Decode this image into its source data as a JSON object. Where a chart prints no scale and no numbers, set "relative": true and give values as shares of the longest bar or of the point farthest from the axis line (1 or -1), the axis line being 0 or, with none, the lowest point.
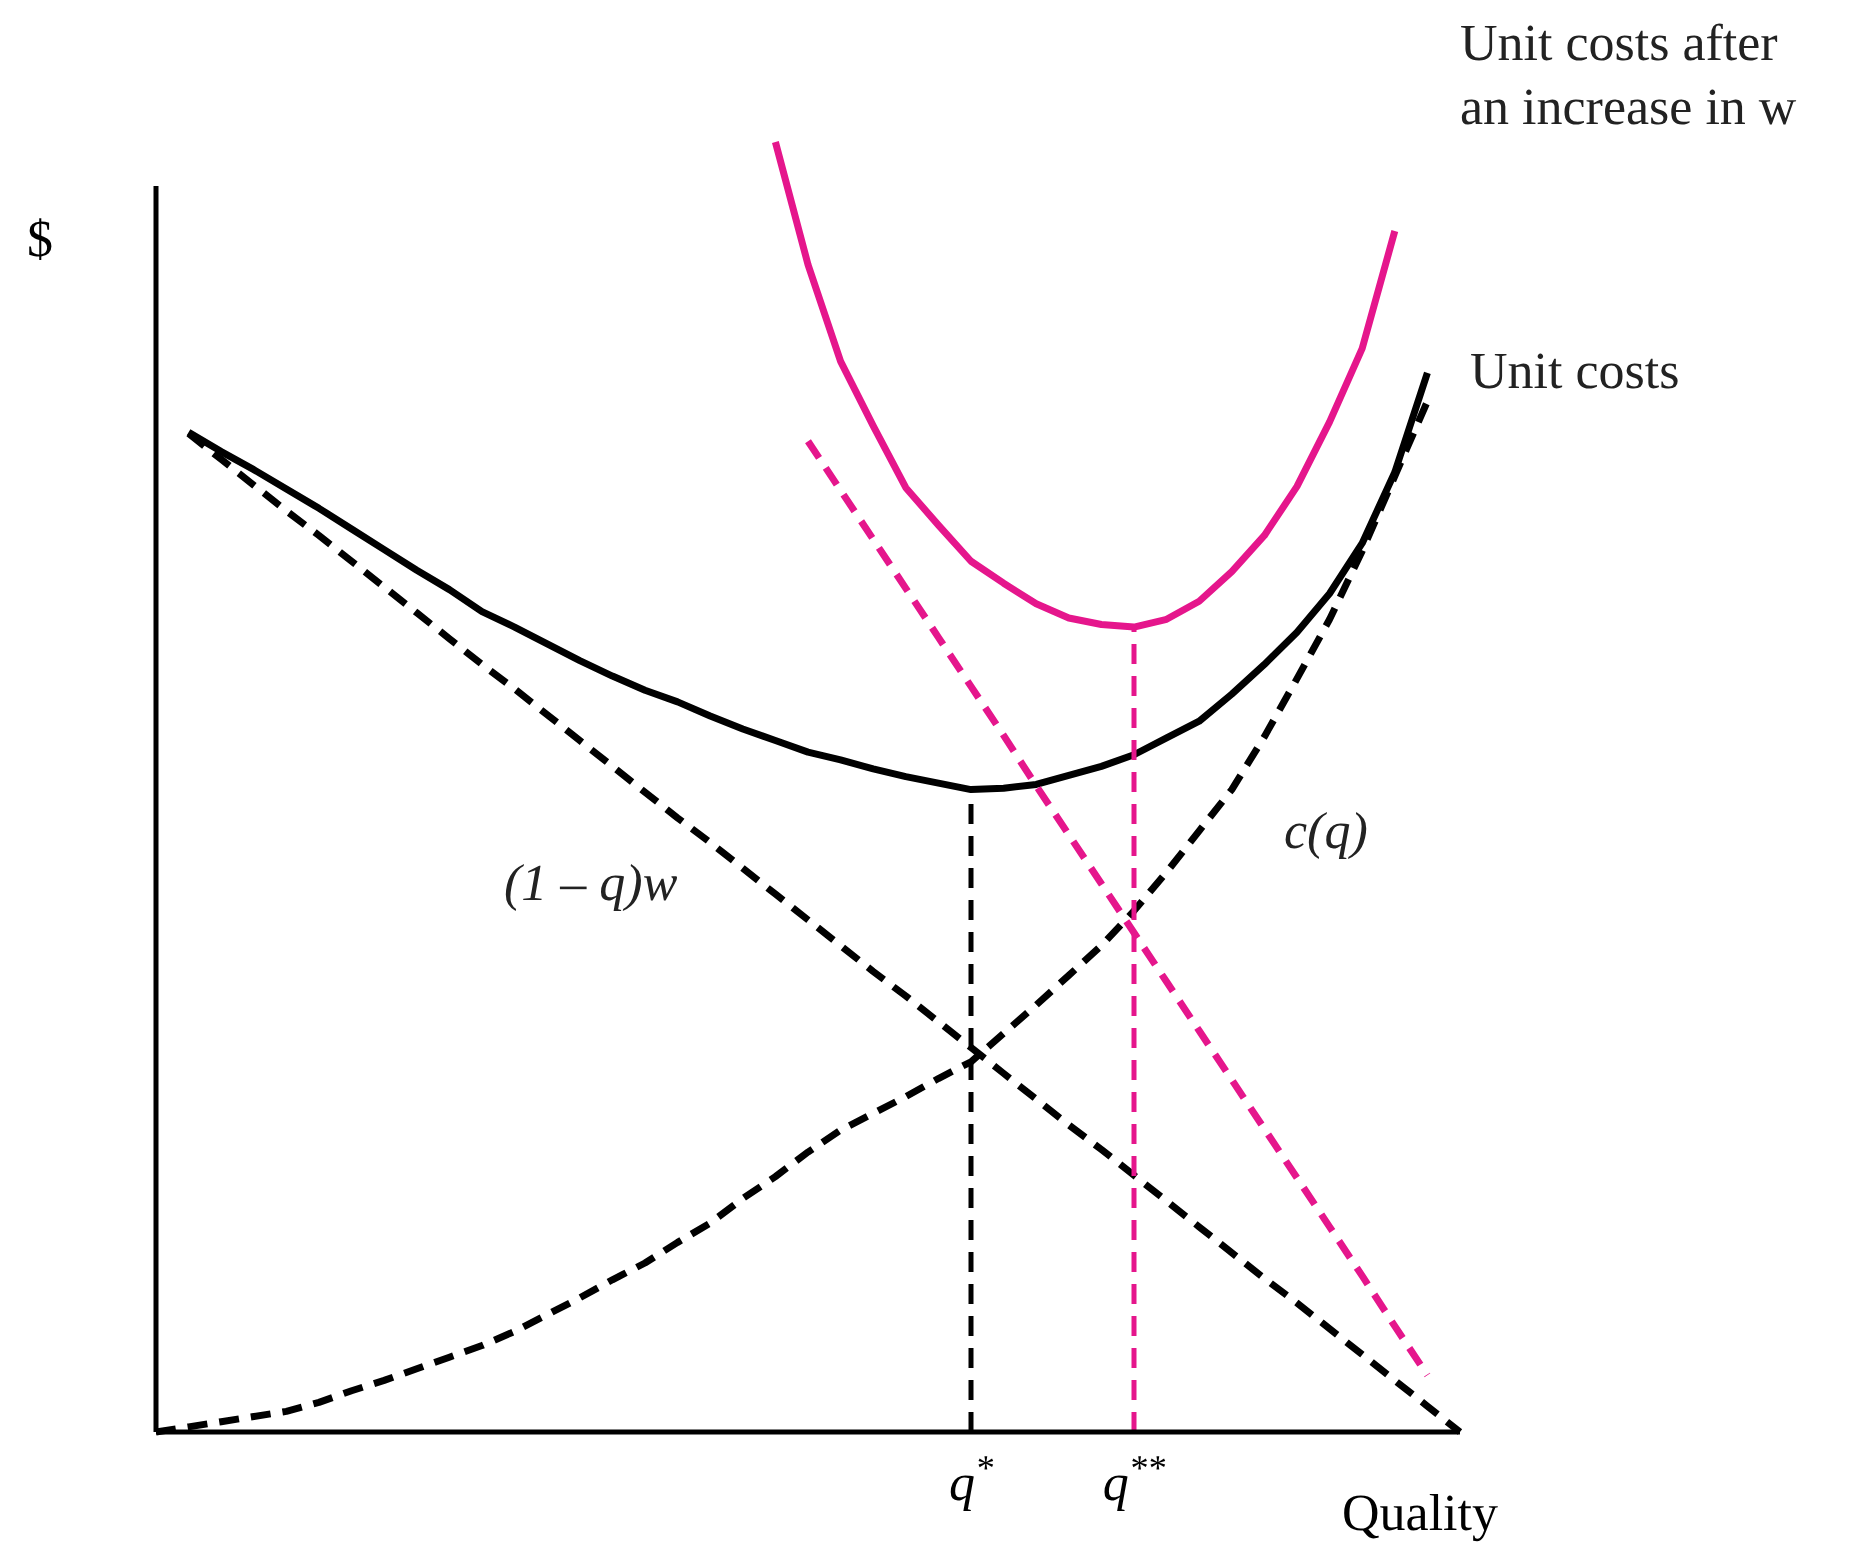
{
  "chart_data": {
    "type": "line",
    "relative": true,
    "xlabel": "Quality",
    "ylabel": "$",
    "tick_labels": "x",
    "categories": [
      null,
      null,
      null,
      null,
      null,
      null,
      null,
      null,
      null,
      null,
      null,
      null,
      null,
      null,
      null,
      null,
      null,
      null,
      null,
      null,
      null,
      null,
      null,
      null,
      null,
      "q$^{*}$",
      null,
      null,
      null,
      null,
      "q$^{**}$",
      null,
      null,
      null,
      null,
      null,
      null,
      null,
      null,
      null,
      null
    ],
    "annotations": [
      "Unit costs after an increase in w",
      "Unit costs",
      "(1 – q)w",
      "c(q)"
    ],
    "ref_lines": [
      {
        "axis": "x",
        "value": "q$^{*}$",
        "color": "#000000",
        "line_style": "dashed"
      },
      {
        "axis": "x",
        "value": "q$^{**}$",
        "color": "#e5168c",
        "line_style": "dashed"
      }
    ],
    "series": [
      {
        "color": "#000000",
        "line_style": "solid",
        "values": [
          null,
          0.775,
          0.76,
          0.746,
          0.731,
          0.716,
          0.7,
          0.684,
          0.668,
          0.653,
          0.636,
          0.624,
          0.611,
          0.598,
          0.586,
          0.575,
          0.566,
          0.555,
          0.545,
          0.536,
          0.527,
          0.521,
          0.514,
          0.508,
          0.503,
          0.498,
          0.499,
          0.502,
          0.509,
          0.516,
          0.525,
          0.538,
          0.551,
          0.572,
          0.595,
          0.62,
          0.65,
          0.689,
          0.744,
          0.821,
          null
        ]
      },
      {
        "color": "#e5168c",
        "line_style": "solid",
        "values": [
          null,
          null,
          null,
          null,
          null,
          null,
          null,
          null,
          null,
          null,
          null,
          null,
          null,
          null,
          null,
          null,
          null,
          null,
          null,
          1,
          0.905,
          0.83,
          0.78,
          0.732,
          0.703,
          0.675,
          0.658,
          0.642,
          0.631,
          0.626,
          0.624,
          0.63,
          0.644,
          0.667,
          0.695,
          0.733,
          0.783,
          0.84,
          0.931,
          null,
          null
        ]
      },
      {
        "color": "#000000",
        "line_style": "dashed",
        "values": [
          null,
          0.774,
          0.754,
          0.734,
          0.714,
          0.695,
          0.675,
          0.655,
          0.635,
          0.615,
          0.595,
          0.576,
          0.556,
          0.536,
          0.516,
          0.496,
          0.476,
          0.457,
          0.437,
          0.417,
          0.397,
          0.377,
          0.357,
          0.338,
          0.318,
          0.298,
          0.278,
          0.258,
          0.238,
          0.219,
          0.199,
          0.179,
          0.159,
          0.139,
          0.119,
          0.1,
          0.08,
          0.06,
          0.04,
          0.02,
          0
        ]
      },
      {
        "color": "#000000",
        "line_style": "dashed",
        "values": [
          0,
          0.004,
          0.008,
          0.012,
          0.016,
          0.023,
          0.032,
          0.04,
          0.049,
          0.058,
          0.067,
          0.078,
          0.091,
          0.104,
          0.118,
          0.131,
          0.147,
          0.162,
          0.181,
          0.198,
          0.217,
          0.234,
          0.247,
          0.26,
          0.274,
          0.287,
          0.309,
          0.331,
          0.354,
          0.377,
          0.404,
          0.434,
          0.466,
          0.498,
          0.539,
          0.584,
          0.63,
          0.683,
          0.741,
          0.799,
          null
        ]
      },
      {
        "color": "#e5168c",
        "line_style": "dashed",
        "values": [
          null,
          null,
          null,
          null,
          null,
          null,
          null,
          null,
          null,
          null,
          null,
          null,
          null,
          null,
          null,
          null,
          null,
          null,
          null,
          null,
          0.768,
          0.73,
          0.692,
          0.654,
          0.616,
          0.578,
          0.54,
          0.501,
          0.463,
          0.425,
          0.387,
          0.349,
          0.311,
          0.273,
          0.235,
          0.197,
          0.159,
          0.121,
          0.082,
          0.044,
          null
        ]
      }
    ]
  }
}
